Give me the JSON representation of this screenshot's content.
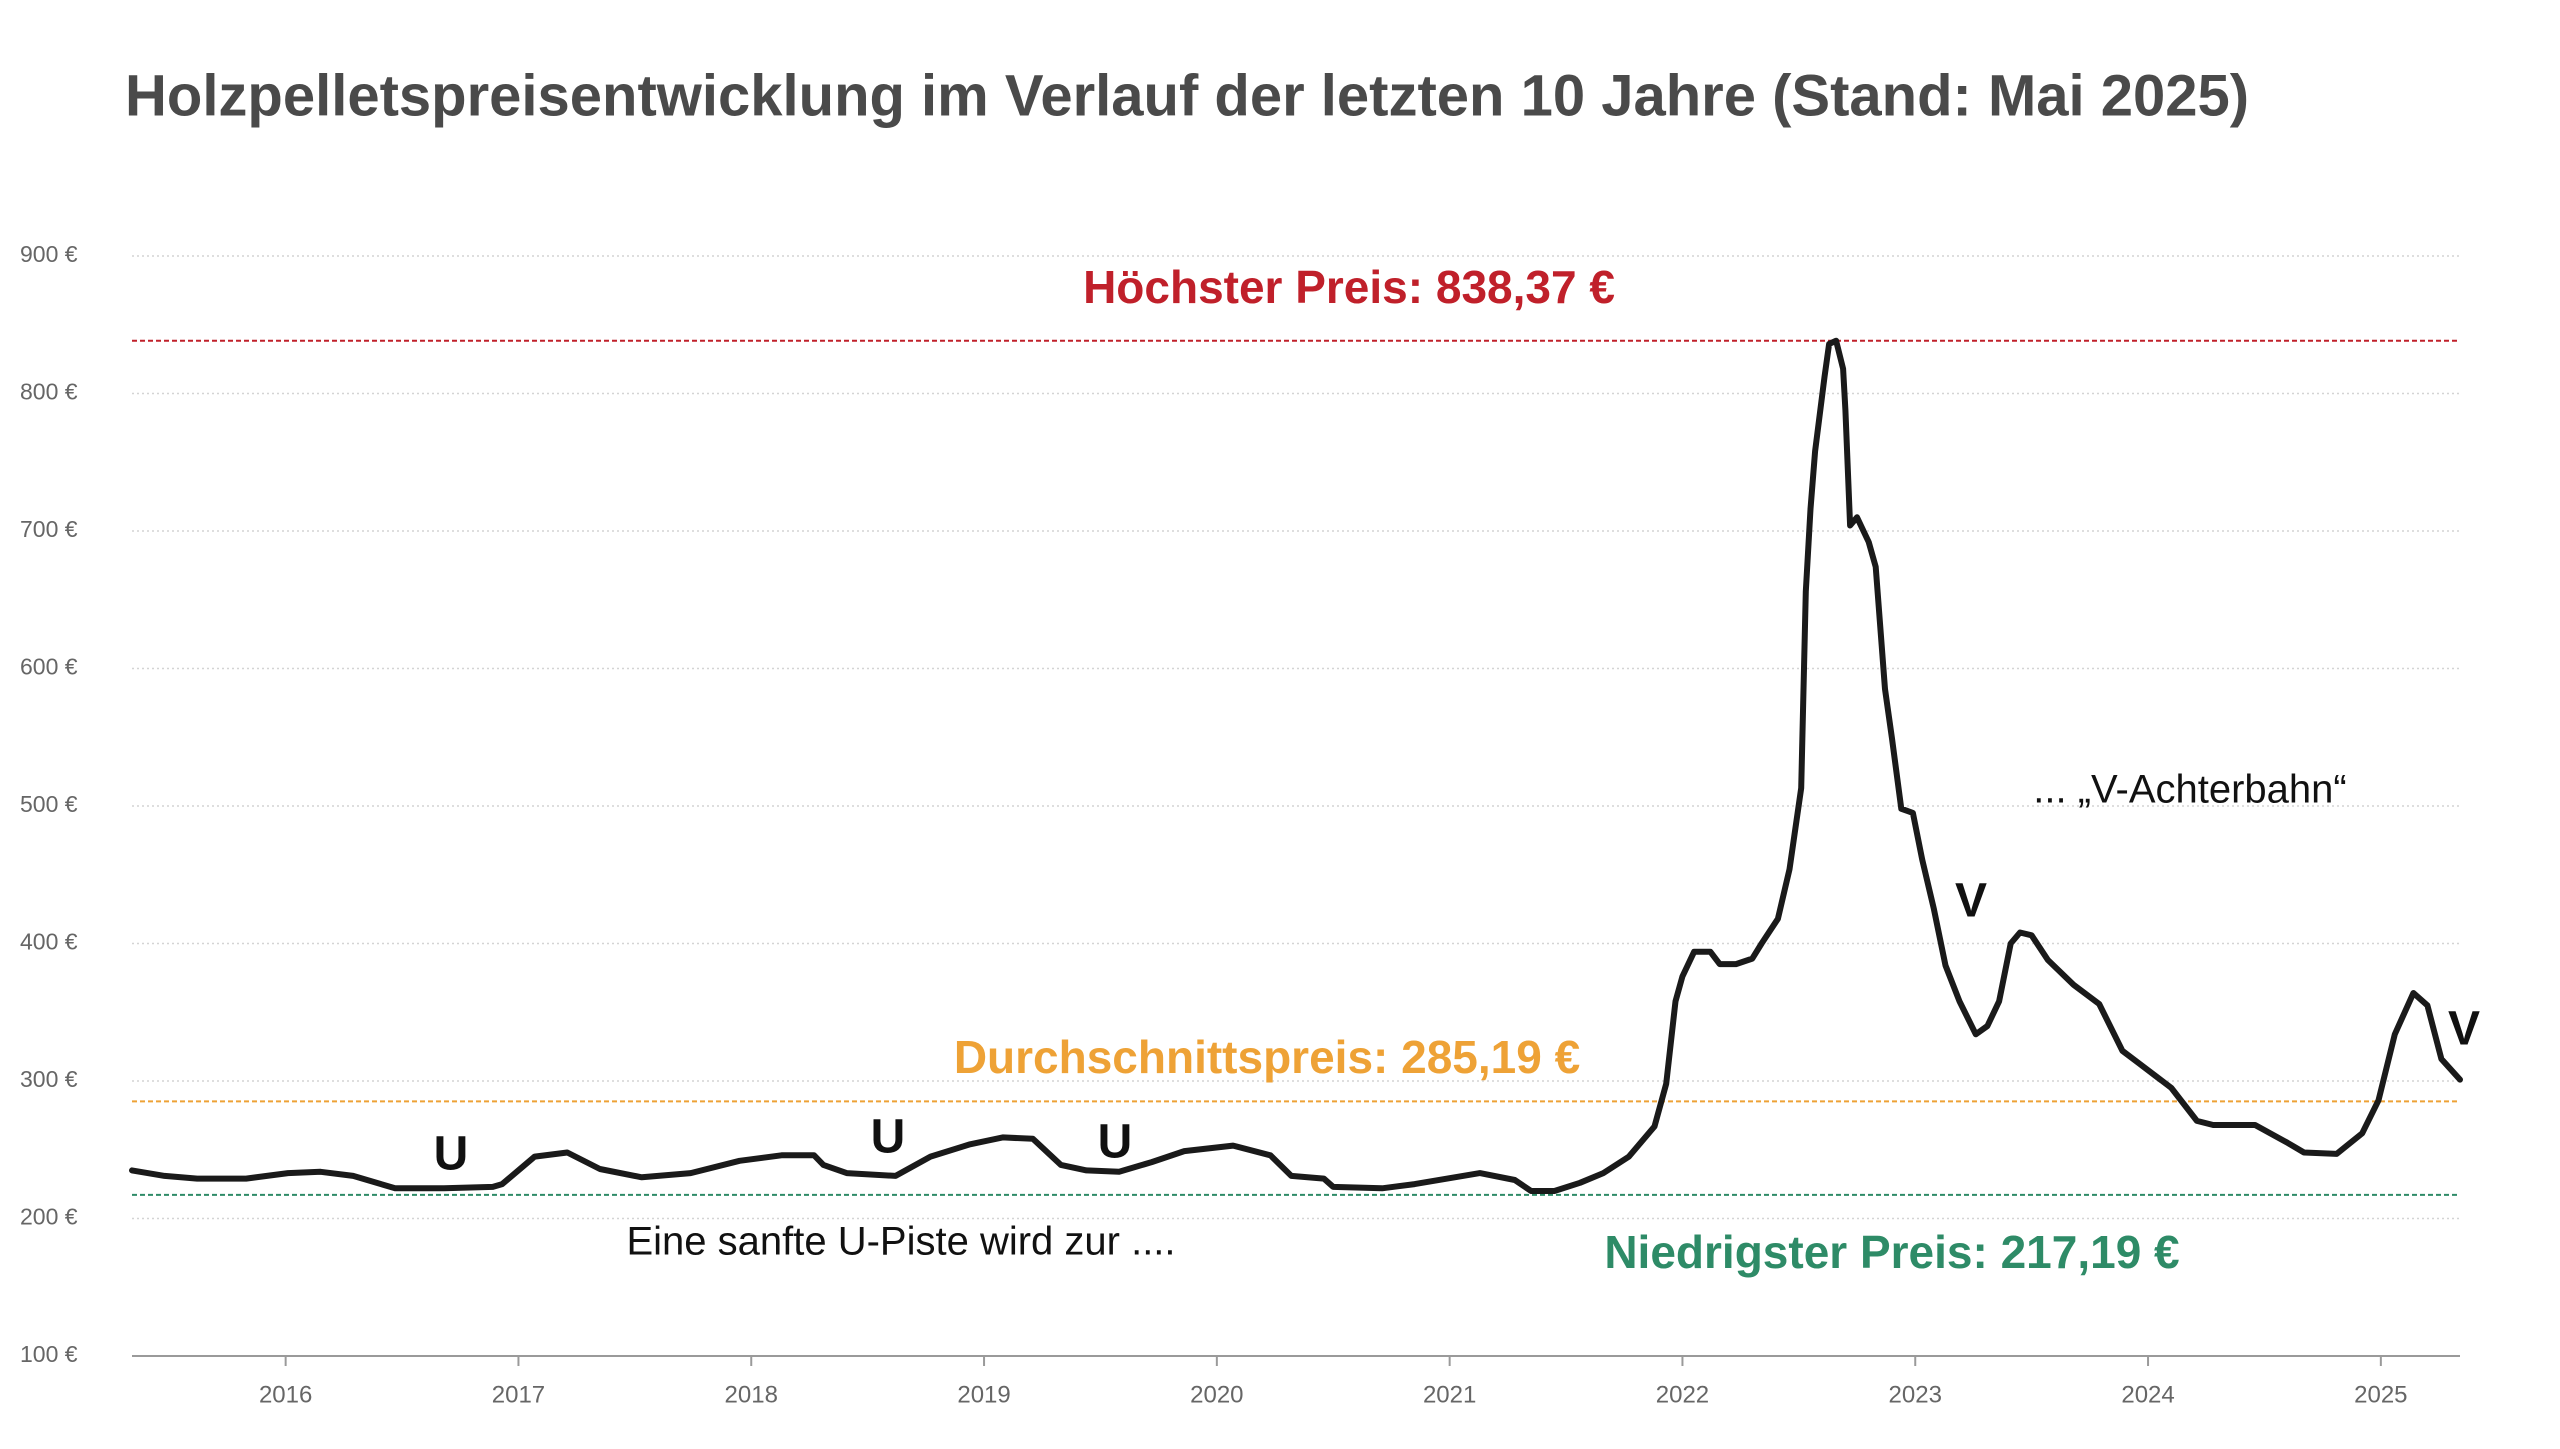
{
  "chart_data": {
    "type": "line",
    "title": "Holzpelletspreisentwicklung im Verlauf der letzten 10 Jahre (Stand: Mai 2025)",
    "x": [
      2015.34,
      2015.48,
      2015.62,
      2015.83,
      2016.01,
      2016.15,
      2016.29,
      2016.47,
      2016.68,
      2016.89,
      2016.93,
      2017.07,
      2017.21,
      2017.35,
      2017.53,
      2017.74,
      2017.95,
      2018.13,
      2018.27,
      2018.31,
      2018.41,
      2018.62,
      2018.77,
      2018.94,
      2019.08,
      2019.21,
      2019.33,
      2019.44,
      2019.58,
      2019.72,
      2019.86,
      2020.07,
      2020.23,
      2020.32,
      2020.46,
      2020.5,
      2020.71,
      2020.85,
      2020.99,
      2021.13,
      2021.28,
      2021.35,
      2021.45,
      2021.56,
      2021.66,
      2021.77,
      2021.88,
      2021.93,
      2021.97,
      2022.0,
      2022.05,
      2022.12,
      2022.16,
      2022.23,
      2022.3,
      2022.34,
      2022.41,
      2022.46,
      2022.51,
      2022.53,
      2022.55,
      2022.57,
      2022.61,
      2022.63,
      2022.66,
      2022.69,
      2022.7,
      2022.72,
      2022.75,
      2022.8,
      2022.83,
      2022.87,
      2022.9,
      2022.94,
      2022.99,
      2023.03,
      2023.08,
      2023.13,
      2023.19,
      2023.26,
      2023.31,
      2023.36,
      2023.41,
      2023.45,
      2023.5,
      2023.57,
      2023.68,
      2023.79,
      2023.89,
      2023.96,
      2024.1,
      2024.21,
      2024.28,
      2024.46,
      2024.6,
      2024.67,
      2024.81,
      2024.92,
      2024.99,
      2025.06,
      2025.14,
      2025.2,
      2025.26,
      2025.34
    ],
    "values": [
      235,
      231,
      229,
      229,
      233,
      234,
      231,
      222,
      222,
      223,
      225,
      245,
      248,
      236,
      230,
      233,
      242,
      246,
      246,
      239,
      233,
      231,
      245,
      254,
      259,
      258,
      239,
      235,
      234,
      241,
      249,
      253,
      246,
      231,
      229,
      223,
      222,
      225,
      229,
      233,
      228,
      220,
      220,
      226,
      233,
      245,
      267,
      298,
      358,
      376,
      394,
      394,
      385,
      385,
      389,
      400,
      418,
      454,
      513,
      656,
      716,
      758,
      812,
      836,
      838.37,
      818,
      788,
      704,
      710,
      692,
      674,
      585,
      549,
      498,
      495,
      461,
      425,
      384,
      358,
      334,
      340,
      358,
      400,
      408,
      406,
      388,
      370,
      356,
      322,
      313,
      295,
      271,
      268,
      268,
      255,
      248,
      247,
      262,
      286,
      334,
      364,
      355,
      316,
      301
    ],
    "color": "#1a1a1a",
    "xlim": [
      2015.34,
      2025.34
    ],
    "ylim": [
      100,
      900
    ],
    "xticks": [
      2016,
      2017,
      2018,
      2019,
      2020,
      2021,
      2022,
      2023,
      2024,
      2025
    ],
    "yticks": [
      {
        "value": 100,
        "label": "100 €"
      },
      {
        "value": 200,
        "label": "200 €"
      },
      {
        "value": 300,
        "label": "300 €"
      },
      {
        "value": 400,
        "label": "400 €"
      },
      {
        "value": 500,
        "label": "500 €"
      },
      {
        "value": 600,
        "label": "600 €"
      },
      {
        "value": 700,
        "label": "700 €"
      },
      {
        "value": 800,
        "label": "800 €"
      },
      {
        "value": 900,
        "label": "900 €"
      }
    ],
    "grid": true,
    "reference_lines": [
      {
        "value": 838.37,
        "label": "Höchster Preis: 838,37 €",
        "color": "#c0202a"
      },
      {
        "value": 285.19,
        "label": "Durchschnittspreis: 285,19 €",
        "color": "#eea236"
      },
      {
        "value": 217.19,
        "label": "Niedrigster Preis: 217,19 €",
        "color": "#2e8b67"
      }
    ],
    "annotations": [
      "U",
      "U",
      "U",
      "V",
      "V",
      "Eine sanfte U-Piste wird zur ....",
      "... „V-Achterbahn“"
    ]
  }
}
